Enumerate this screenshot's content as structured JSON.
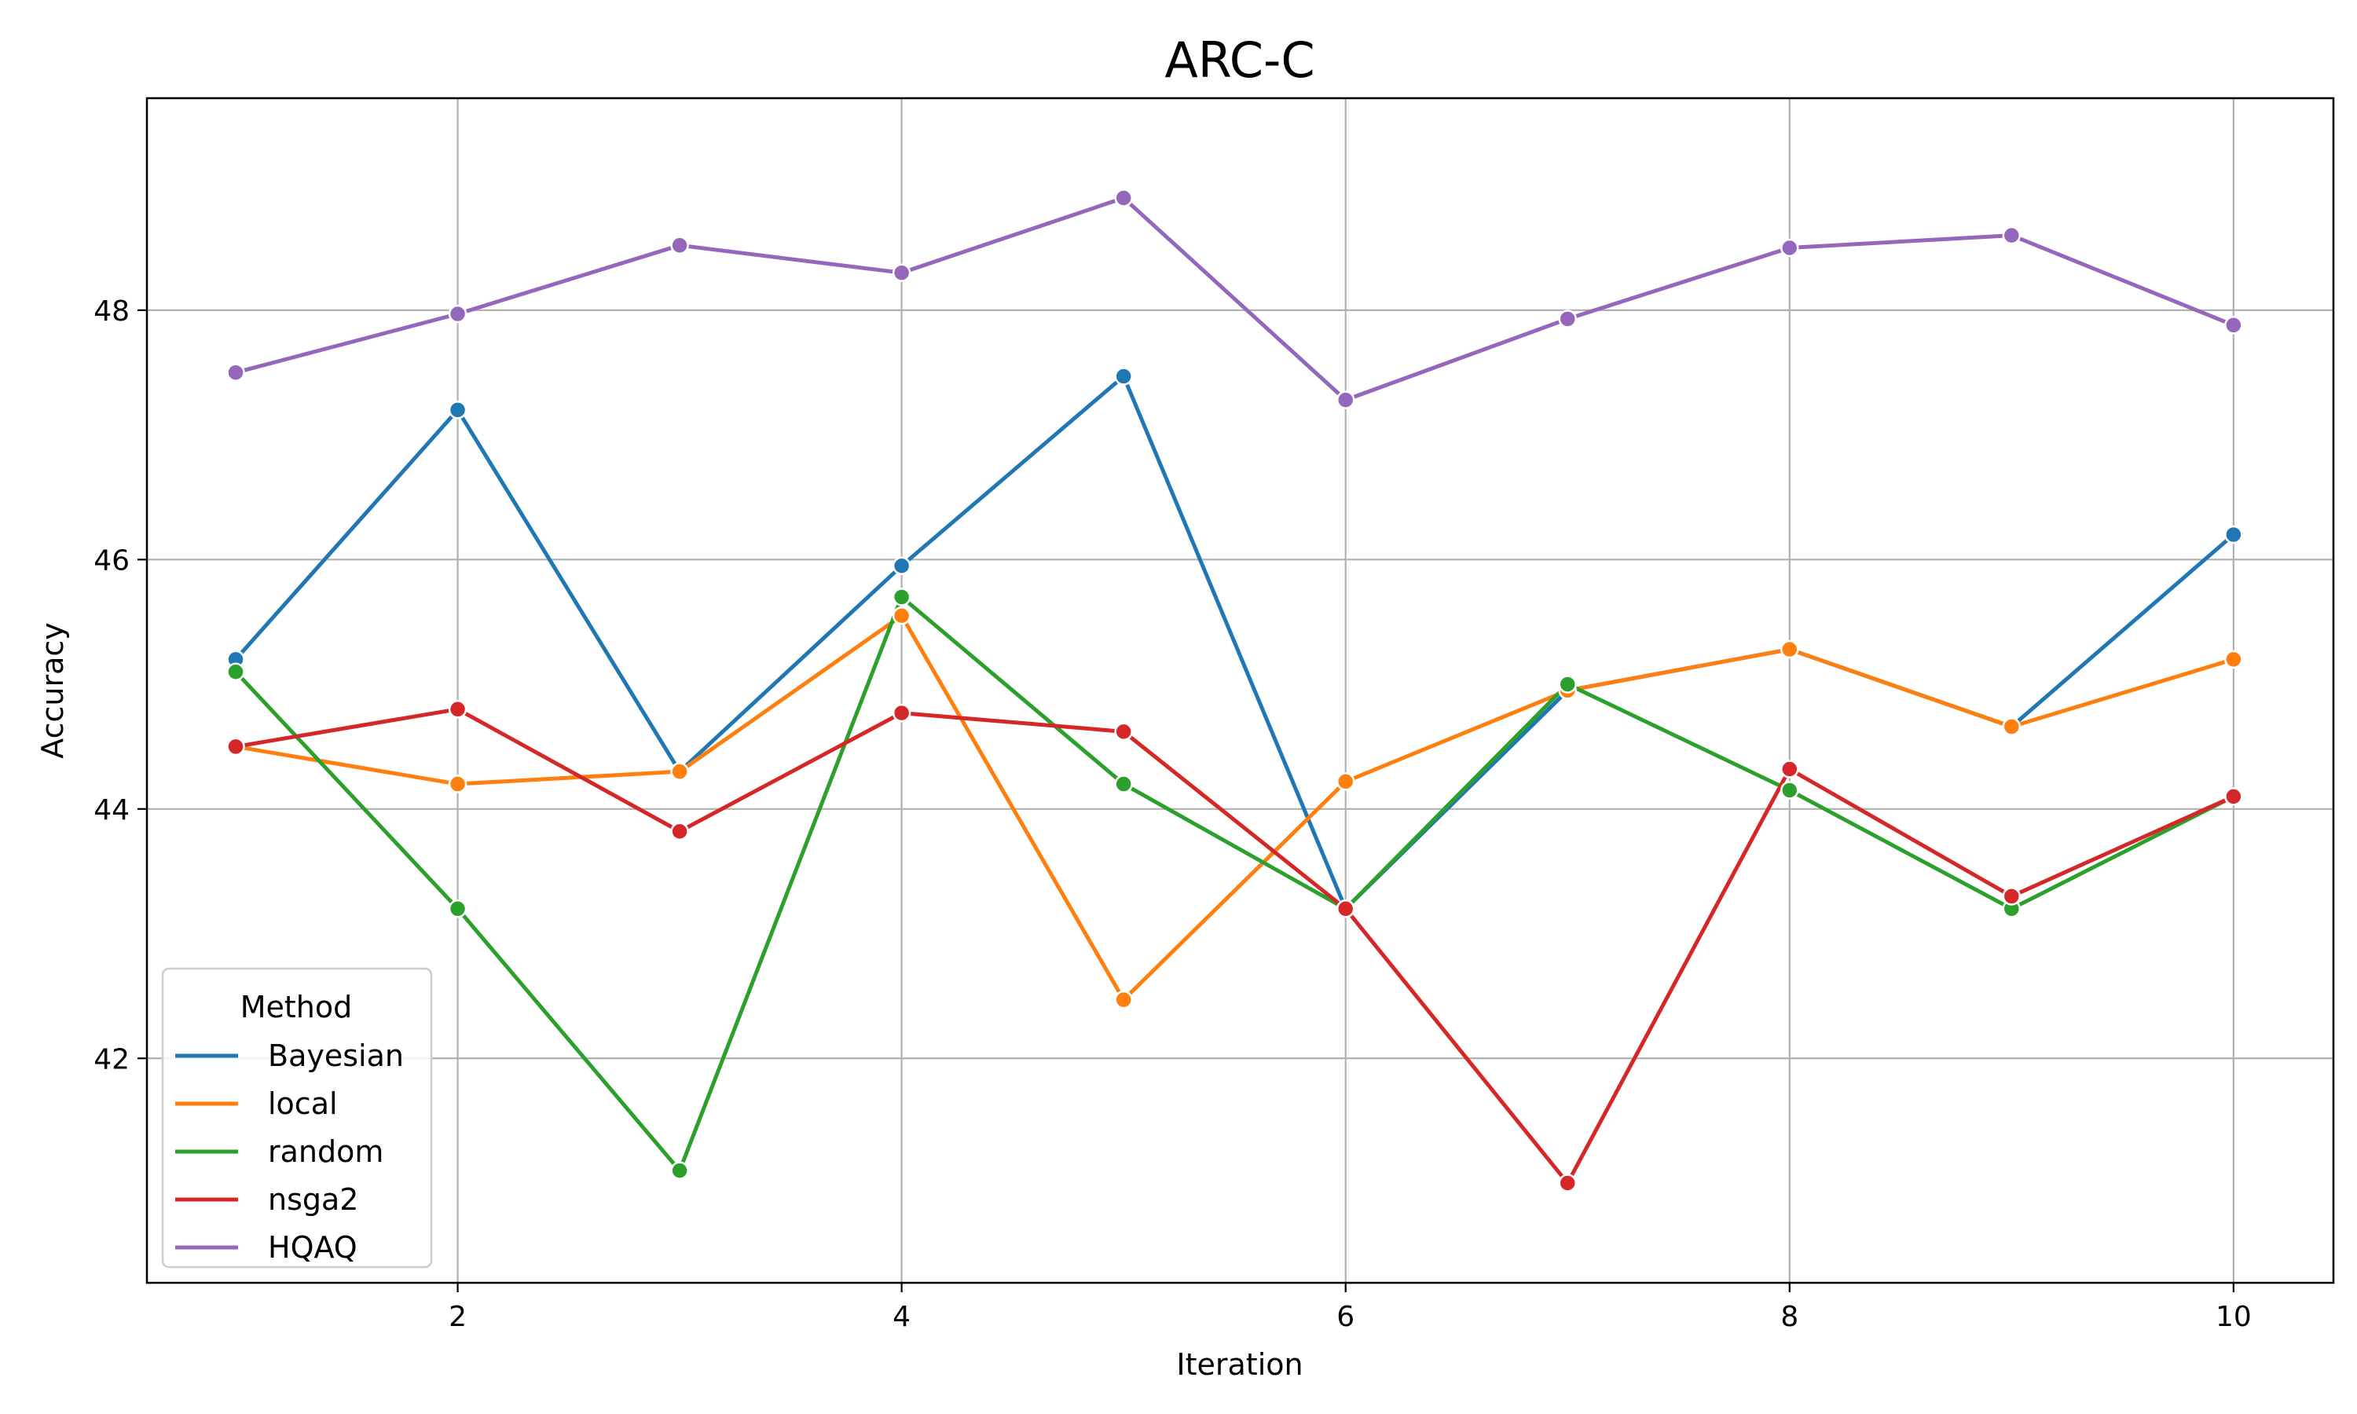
{
  "chart_data": {
    "type": "line",
    "title": "ARC-C",
    "xlabel": "Iteration",
    "ylabel": "Accuracy",
    "xlim": [
      0.6,
      10.45
    ],
    "ylim": [
      40.2,
      49.7
    ],
    "xticks": [
      2,
      4,
      6,
      8,
      10
    ],
    "yticks": [
      42,
      44,
      46,
      48
    ],
    "grid": true,
    "legend": {
      "title": "Method",
      "placement": "lower-left"
    },
    "x": [
      1,
      2,
      3,
      4,
      5,
      6,
      7,
      8,
      9,
      10
    ],
    "series": [
      {
        "name": "Bayesian",
        "color": "#1f77b4",
        "values": [
          45.2,
          47.2,
          44.3,
          45.95,
          47.47,
          43.2,
          44.95,
          45.28,
          44.66,
          46.2
        ]
      },
      {
        "name": "local",
        "color": "#ff7f0e",
        "values": [
          44.5,
          44.2,
          44.3,
          45.55,
          42.47,
          44.22,
          44.95,
          45.28,
          44.66,
          45.2
        ]
      },
      {
        "name": "random",
        "color": "#2ca02c",
        "values": [
          45.1,
          43.2,
          41.1,
          45.7,
          44.2,
          43.2,
          45.0,
          44.15,
          43.2,
          44.1
        ]
      },
      {
        "name": "nsga2",
        "color": "#d62728",
        "values": [
          44.5,
          44.8,
          43.82,
          44.77,
          44.62,
          43.2,
          41.0,
          44.32,
          43.3,
          44.1
        ]
      },
      {
        "name": "HQAQ",
        "color": "#9467bd",
        "values": [
          47.5,
          47.97,
          48.52,
          48.3,
          48.9,
          47.28,
          47.93,
          48.5,
          48.6,
          47.88
        ]
      }
    ]
  }
}
